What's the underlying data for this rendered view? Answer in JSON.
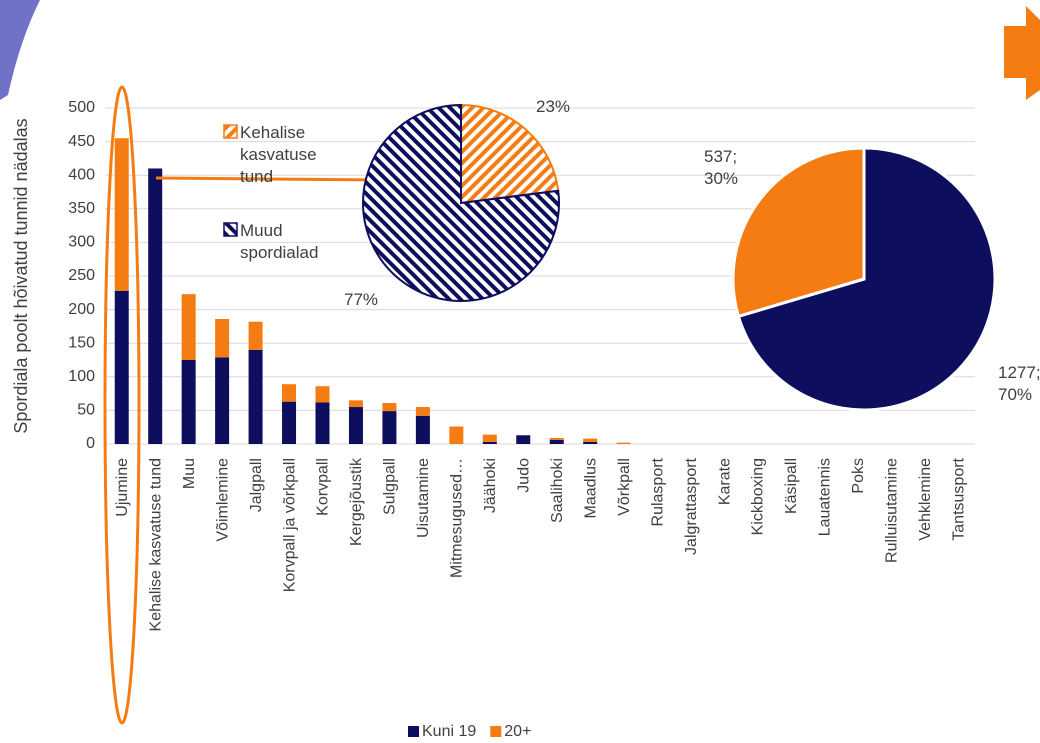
{
  "chart_data": [
    {
      "type": "bar",
      "stacked": true,
      "y_label": "Spordiala poolt hõivatud tunnid nädalas",
      "categories": [
        "Ujumine",
        "Kehalise kasvatuse tund",
        "Muu",
        "Võimlemine",
        "Jalgpall",
        "Korvpall ja võrkpall",
        "Korvpall",
        "Kergejõustik",
        "Sulgpall",
        "Uisutamine",
        "Mitmesugused…",
        "Jäähoki",
        "Judo",
        "Saalihoki",
        "Maadlus",
        "Võrkpall",
        "Rulasport",
        "Jalgrattasport",
        "Karate",
        "Kickboxing",
        "Käsipall",
        "Lauatennis",
        "Poks",
        "Rulluisutamine",
        "Vehklemine",
        "Tantsusport"
      ],
      "series": [
        {
          "name": "Kuni 19",
          "color": "#0e0e5e",
          "values": [
            228,
            410,
            125,
            129,
            140,
            63,
            62,
            55,
            49,
            42,
            0,
            3,
            13,
            6,
            3,
            0,
            0,
            0,
            0,
            0,
            0,
            0,
            0,
            0,
            0,
            0
          ]
        },
        {
          "name": "20+",
          "color": "#f57c13",
          "values": [
            227,
            0,
            98,
            57,
            42,
            26,
            24,
            10,
            12,
            13,
            26,
            11,
            0,
            3,
            5,
            2,
            0,
            0,
            0,
            0,
            0,
            0,
            0,
            0,
            0,
            0
          ]
        }
      ],
      "ylim": [
        0,
        500
      ],
      "yticks": [
        0,
        50,
        100,
        150,
        200,
        250,
        300,
        350,
        400,
        450,
        500
      ],
      "grid": true,
      "legend": "bottom"
    },
    {
      "type": "pie",
      "hatched": true,
      "labels": [
        "Kehalise kasvatuse tund",
        "Muud spordialad"
      ],
      "values": [
        23,
        77
      ],
      "value_labels": [
        "23%",
        "77%"
      ],
      "colors": [
        "#f57c13",
        "#0e0e5e"
      ]
    },
    {
      "type": "pie",
      "values": [
        1277,
        537
      ],
      "value_labels": [
        "1277; 70%",
        "537; 30%"
      ],
      "colors": [
        "#0e0e5e",
        "#f57c13"
      ]
    }
  ]
}
